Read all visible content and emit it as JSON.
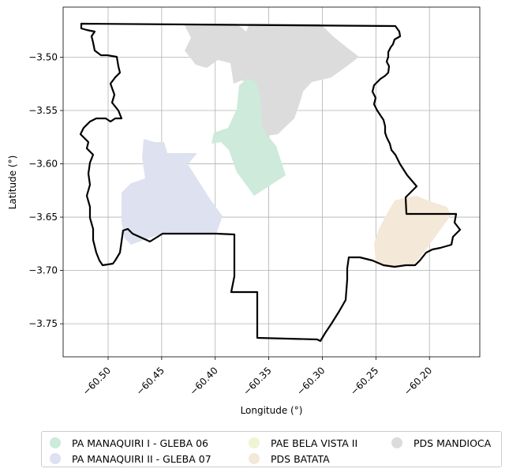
{
  "map": {
    "xlabel": "Longitude (°)",
    "ylabel": "Latitude (°)",
    "x_ticks": [
      "−60.50",
      "−60.45",
      "−60.40",
      "−60.35",
      "−60.30",
      "−60.25",
      "−60.20"
    ],
    "y_ticks": [
      "−3.50",
      "−3.55",
      "−3.60",
      "−3.65",
      "−3.70",
      "−3.75"
    ],
    "x_tick_values": [
      -60.5,
      -60.45,
      -60.4,
      -60.35,
      -60.3,
      -60.25,
      -60.2
    ],
    "y_tick_values": [
      -3.5,
      -3.55,
      -3.6,
      -3.65,
      -3.7,
      -3.75
    ],
    "xlim": [
      -60.542,
      -60.153
    ],
    "ylim": [
      -3.781,
      -3.453
    ],
    "grid": true,
    "boundary_color": "#000000"
  },
  "legend": {
    "placement": "below",
    "items": [
      {
        "label": "PA MANAQUIRI I - GLEBA 06",
        "color": "#cdeadb"
      },
      {
        "label": "PA MANAQUIRI II - GLEBA 07",
        "color": "#dde1f0"
      },
      {
        "label": "PAE BELA VISTA II",
        "color": "#eef5d2"
      },
      {
        "label": "PDS BATATA",
        "color": "#f4e8d8"
      },
      {
        "label": "PDS MANDIOCA",
        "color": "#dcdcdc"
      }
    ]
  }
}
